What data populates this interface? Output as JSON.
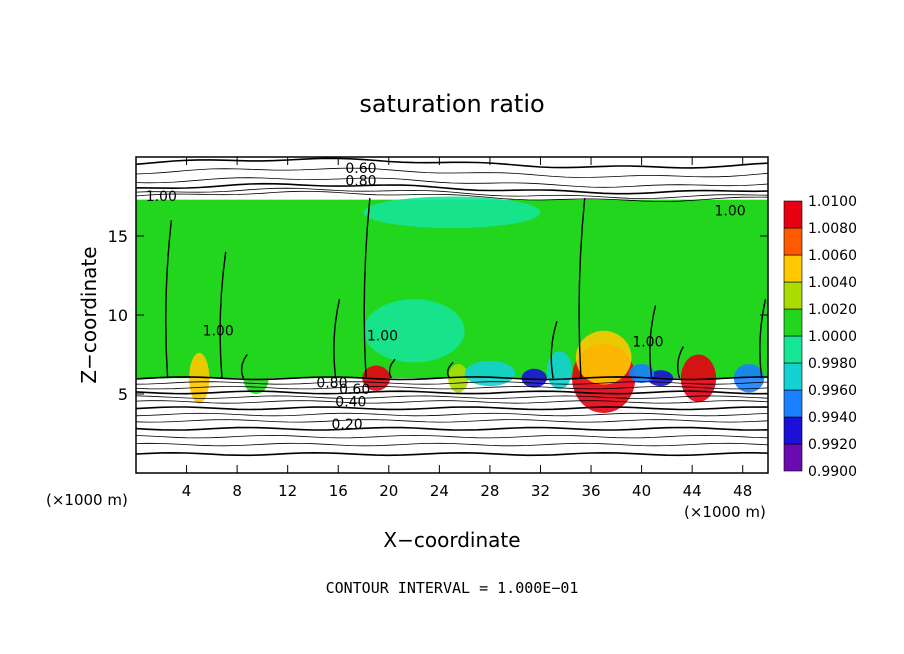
{
  "chart_data": {
    "type": "heatmap",
    "title": "saturation ratio",
    "xlabel": "X−coordinate",
    "ylabel": "Z−coordinate",
    "x_unit_left": "(×1000 m)",
    "x_unit_right": "(×1000 m)",
    "footer": "CONTOUR INTERVAL =  1.000E−01",
    "xlim": [
      0,
      50
    ],
    "ylim": [
      0,
      20
    ],
    "x_ticks": [
      4,
      8,
      12,
      16,
      20,
      24,
      28,
      32,
      36,
      40,
      44,
      48
    ],
    "x_tick_labels": [
      "4",
      "8",
      "12",
      "16",
      "20",
      "24",
      "28",
      "32",
      "36",
      "40",
      "44",
      "48"
    ],
    "y_ticks": [
      5,
      10,
      15
    ],
    "y_tick_labels": [
      "5",
      "10",
      "15"
    ],
    "colorbar": {
      "levels": [
        0.99,
        0.992,
        0.994,
        0.996,
        0.998,
        1.0,
        1.002,
        1.004,
        1.006,
        1.008,
        1.01
      ],
      "labels": [
        "0.9900",
        "0.9920",
        "0.9940",
        "0.9960",
        "0.9980",
        "1.0000",
        "1.0020",
        "1.0040",
        "1.0060",
        "1.0080",
        "1.0100"
      ],
      "colors": [
        "#6a0ab0",
        "#1a10d8",
        "#1a80ff",
        "#14d2d2",
        "#16e696",
        "#22d61e",
        "#aadc00",
        "#ffc800",
        "#ff5a00",
        "#e60012",
        "#ff8aa0"
      ]
    },
    "fill_region": {
      "x": [
        0,
        50
      ],
      "z": [
        6,
        17.3
      ]
    },
    "contour_labels": [
      {
        "text": "0.60",
        "x": 17.8,
        "z": 19.0
      },
      {
        "text": "0.80",
        "x": 17.8,
        "z": 18.2
      },
      {
        "text": "1.00",
        "x": 2.0,
        "z": 17.2
      },
      {
        "text": "1.00",
        "x": 47.0,
        "z": 16.3
      },
      {
        "text": "1.00",
        "x": 6.5,
        "z": 8.7
      },
      {
        "text": "1.00",
        "x": 19.5,
        "z": 8.4
      },
      {
        "text": "1.00",
        "x": 40.5,
        "z": 8.0
      },
      {
        "text": "0.80",
        "x": 15.5,
        "z": 5.4
      },
      {
        "text": "0.60",
        "x": 17.3,
        "z": 5.0
      },
      {
        "text": "0.40",
        "x": 17.0,
        "z": 4.2
      },
      {
        "text": "0.20",
        "x": 16.7,
        "z": 2.8
      }
    ],
    "features": [
      {
        "x": 5.0,
        "z": 6.0,
        "w": 0.8,
        "h": 1.6,
        "v": 1.005
      },
      {
        "x": 9.5,
        "z": 6.0,
        "w": 1.0,
        "h": 1.0,
        "v": 1.001
      },
      {
        "x": 19.0,
        "z": 6.0,
        "w": 1.1,
        "h": 0.8,
        "v": 1.008
      },
      {
        "x": 25.5,
        "z": 6.0,
        "w": 0.8,
        "h": 0.9,
        "v": 1.002
      },
      {
        "x": 31.5,
        "z": 6.0,
        "w": 1.0,
        "h": 0.6,
        "v": 0.992
      },
      {
        "x": 37.0,
        "z": 6.0,
        "w": 2.5,
        "h": 2.2,
        "v": 1.008
      },
      {
        "x": 37.0,
        "z": 7.3,
        "w": 2.2,
        "h": 1.7,
        "v": 1.004
      },
      {
        "x": 44.5,
        "z": 6.0,
        "w": 1.4,
        "h": 1.5,
        "v": 1.008
      },
      {
        "x": 41.5,
        "z": 6.0,
        "w": 1.0,
        "h": 0.5,
        "v": 0.993
      },
      {
        "x": 48.5,
        "z": 6.0,
        "w": 1.2,
        "h": 0.9,
        "v": 0.994
      },
      {
        "x": 28.0,
        "z": 6.3,
        "w": 2.0,
        "h": 0.8,
        "v": 0.997
      },
      {
        "x": 33.5,
        "z": 6.5,
        "w": 1.0,
        "h": 1.2,
        "v": 0.997
      },
      {
        "x": 22.0,
        "z": 9.0,
        "w": 4.0,
        "h": 2.0,
        "v": 0.9985
      },
      {
        "x": 25.0,
        "z": 16.5,
        "w": 7.0,
        "h": 1.0,
        "v": 0.9985
      },
      {
        "x": 40.0,
        "z": 6.3,
        "w": 1.0,
        "h": 0.6,
        "v": 0.994
      }
    ]
  }
}
